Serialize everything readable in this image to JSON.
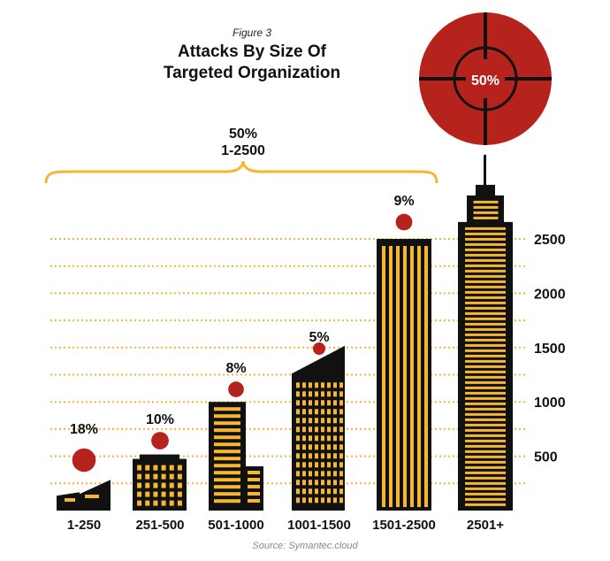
{
  "figure_label": "Figure 3",
  "title_line1": "Attacks By Size Of",
  "title_line2": "Targeted Organization",
  "bracket": {
    "percent": "50%",
    "range": "1-2500"
  },
  "source": "Source: Symantec.cloud",
  "colors": {
    "bar": "#111111",
    "window": "#f5b731",
    "target": "#b5231c",
    "gridline": "#f5b731",
    "bracket": "#f5b731"
  },
  "chart_data": {
    "type": "bar",
    "categories": [
      "1-250",
      "251-500",
      "501-1000",
      "1001-1500",
      "1501-2500",
      "2501+"
    ],
    "values": [
      18,
      10,
      8,
      5,
      9,
      50
    ],
    "value_labels": [
      "18%",
      "10%",
      "8%",
      "5%",
      "9%",
      "50%"
    ],
    "yticks": [
      500,
      1000,
      1500,
      2000,
      2500
    ],
    "ylim": [
      0,
      2900
    ],
    "grid": true,
    "building_heights": [
      250,
      500,
      1000,
      1500,
      2500,
      2900
    ]
  }
}
